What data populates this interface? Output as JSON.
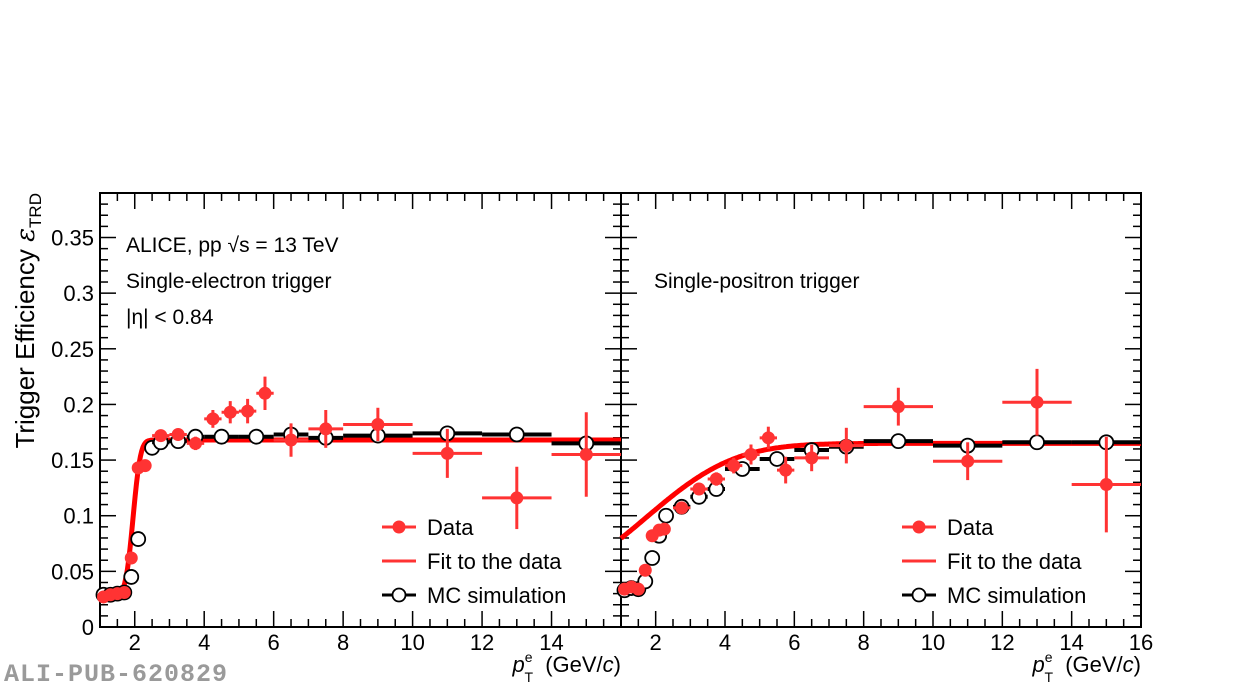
{
  "watermark": "ALI-PUB-620829",
  "chart_data": [
    {
      "type": "scatter",
      "panel": "left",
      "title": "",
      "annotations": [
        "ALICE, pp √s = 13 TeV",
        "Single-electron trigger",
        "|η| < 0.84"
      ],
      "xlabel": "p_T^e (GeV/c)",
      "ylabel": "Trigger Efficiency ε_TRD",
      "xlim": [
        1,
        16
      ],
      "ylim": [
        0,
        0.39
      ],
      "xticks": [
        2,
        4,
        6,
        8,
        10,
        12,
        14
      ],
      "yticks": [
        0,
        0.05,
        0.1,
        0.15,
        0.2,
        0.25,
        0.3,
        0.35
      ],
      "ytick_labels": [
        "0",
        "0.05",
        "0.1",
        "0.15",
        "0.2",
        "0.25",
        "0.3",
        "0.35"
      ],
      "grid": false,
      "legend": {
        "position": "bottom-right",
        "entries": [
          "Data",
          "Fit to the data",
          "MC simulation"
        ]
      },
      "series": [
        {
          "name": "Data",
          "color": "#ff3333",
          "points": [
            {
              "x": 1.1,
              "y": 0.027,
              "xerr": 0.1,
              "yerr": 0.003
            },
            {
              "x": 1.3,
              "y": 0.029,
              "xerr": 0.1,
              "yerr": 0.003
            },
            {
              "x": 1.5,
              "y": 0.03,
              "xerr": 0.1,
              "yerr": 0.003
            },
            {
              "x": 1.7,
              "y": 0.031,
              "xerr": 0.1,
              "yerr": 0.003
            },
            {
              "x": 1.9,
              "y": 0.062,
              "xerr": 0.1,
              "yerr": 0.004
            },
            {
              "x": 2.1,
              "y": 0.143,
              "xerr": 0.1,
              "yerr": 0.005
            },
            {
              "x": 2.3,
              "y": 0.145,
              "xerr": 0.1,
              "yerr": 0.005
            },
            {
              "x": 2.75,
              "y": 0.172,
              "xerr": 0.25,
              "yerr": 0.005
            },
            {
              "x": 3.25,
              "y": 0.173,
              "xerr": 0.25,
              "yerr": 0.005
            },
            {
              "x": 3.75,
              "y": 0.165,
              "xerr": 0.25,
              "yerr": 0.006
            },
            {
              "x": 4.25,
              "y": 0.187,
              "xerr": 0.25,
              "yerr": 0.008
            },
            {
              "x": 4.75,
              "y": 0.193,
              "xerr": 0.25,
              "yerr": 0.01
            },
            {
              "x": 5.25,
              "y": 0.194,
              "xerr": 0.25,
              "yerr": 0.011
            },
            {
              "x": 5.75,
              "y": 0.21,
              "xerr": 0.25,
              "yerr": 0.015
            },
            {
              "x": 6.5,
              "y": 0.168,
              "xerr": 0.5,
              "yerr": 0.015
            },
            {
              "x": 7.5,
              "y": 0.178,
              "xerr": 0.5,
              "yerr": 0.017
            },
            {
              "x": 9.0,
              "y": 0.182,
              "xerr": 1.0,
              "yerr": 0.015
            },
            {
              "x": 11.0,
              "y": 0.156,
              "xerr": 1.0,
              "yerr": 0.022
            },
            {
              "x": 13.0,
              "y": 0.116,
              "xerr": 1.0,
              "yerr": 0.028
            },
            {
              "x": 15.0,
              "y": 0.155,
              "xerr": 1.0,
              "yerr": 0.038
            }
          ]
        },
        {
          "name": "MC simulation",
          "color": "#000000",
          "points": [
            {
              "x": 1.1,
              "y": 0.029,
              "xerr": 0.1
            },
            {
              "x": 1.3,
              "y": 0.029,
              "xerr": 0.1
            },
            {
              "x": 1.5,
              "y": 0.03,
              "xerr": 0.1
            },
            {
              "x": 1.7,
              "y": 0.031,
              "xerr": 0.1
            },
            {
              "x": 1.9,
              "y": 0.045,
              "xerr": 0.1
            },
            {
              "x": 2.1,
              "y": 0.079,
              "xerr": 0.1
            },
            {
              "x": 2.5,
              "y": 0.161,
              "xerr": 0.1
            },
            {
              "x": 2.75,
              "y": 0.166,
              "xerr": 0.25
            },
            {
              "x": 3.25,
              "y": 0.167,
              "xerr": 0.25
            },
            {
              "x": 3.75,
              "y": 0.171,
              "xerr": 0.25
            },
            {
              "x": 4.5,
              "y": 0.171,
              "xerr": 0.5
            },
            {
              "x": 5.5,
              "y": 0.171,
              "xerr": 0.5
            },
            {
              "x": 6.5,
              "y": 0.173,
              "xerr": 0.5
            },
            {
              "x": 7.5,
              "y": 0.17,
              "xerr": 0.5
            },
            {
              "x": 9.0,
              "y": 0.172,
              "xerr": 1.0
            },
            {
              "x": 11.0,
              "y": 0.174,
              "xerr": 1.0
            },
            {
              "x": 13.0,
              "y": 0.173,
              "xerr": 1.0
            },
            {
              "x": 15.0,
              "y": 0.165,
              "xerr": 1.0
            }
          ]
        },
        {
          "name": "Fit to the data",
          "color": "#ff0000",
          "function": "erf",
          "plateau": 0.168,
          "baseline": 0.028,
          "midpoint": 1.95,
          "width": 0.17
        }
      ]
    },
    {
      "type": "scatter",
      "panel": "right",
      "title": "",
      "annotations": [
        "Single-positron trigger"
      ],
      "xlabel": "p_T^e (GeV/c)",
      "xlim": [
        1,
        16
      ],
      "ylim": [
        0,
        0.39
      ],
      "xticks": [
        2,
        4,
        6,
        8,
        10,
        12,
        14,
        16
      ],
      "grid": false,
      "legend": {
        "position": "bottom-right",
        "entries": [
          "Data",
          "Fit to the data",
          "MC simulation"
        ]
      },
      "series": [
        {
          "name": "Data",
          "color": "#ff3333",
          "points": [
            {
              "x": 1.1,
              "y": 0.034,
              "xerr": 0.1,
              "yerr": 0.003
            },
            {
              "x": 1.3,
              "y": 0.036,
              "xerr": 0.1,
              "yerr": 0.003
            },
            {
              "x": 1.5,
              "y": 0.034,
              "xerr": 0.1,
              "yerr": 0.003
            },
            {
              "x": 1.7,
              "y": 0.051,
              "xerr": 0.1,
              "yerr": 0.004
            },
            {
              "x": 1.9,
              "y": 0.082,
              "xerr": 0.1,
              "yerr": 0.005
            },
            {
              "x": 2.1,
              "y": 0.087,
              "xerr": 0.1,
              "yerr": 0.005
            },
            {
              "x": 2.25,
              "y": 0.088,
              "xerr": 0.1,
              "yerr": 0.005
            },
            {
              "x": 2.75,
              "y": 0.107,
              "xerr": 0.25,
              "yerr": 0.005
            },
            {
              "x": 3.25,
              "y": 0.124,
              "xerr": 0.25,
              "yerr": 0.005
            },
            {
              "x": 3.75,
              "y": 0.133,
              "xerr": 0.25,
              "yerr": 0.006
            },
            {
              "x": 4.25,
              "y": 0.145,
              "xerr": 0.25,
              "yerr": 0.007
            },
            {
              "x": 4.75,
              "y": 0.155,
              "xerr": 0.25,
              "yerr": 0.009
            },
            {
              "x": 5.25,
              "y": 0.17,
              "xerr": 0.25,
              "yerr": 0.01
            },
            {
              "x": 5.75,
              "y": 0.141,
              "xerr": 0.25,
              "yerr": 0.012
            },
            {
              "x": 6.5,
              "y": 0.152,
              "xerr": 0.5,
              "yerr": 0.012
            },
            {
              "x": 7.5,
              "y": 0.163,
              "xerr": 0.5,
              "yerr": 0.016
            },
            {
              "x": 9.0,
              "y": 0.198,
              "xerr": 1.0,
              "yerr": 0.017
            },
            {
              "x": 11.0,
              "y": 0.149,
              "xerr": 1.0,
              "yerr": 0.017
            },
            {
              "x": 13.0,
              "y": 0.202,
              "xerr": 1.0,
              "yerr": 0.03
            },
            {
              "x": 15.0,
              "y": 0.128,
              "xerr": 1.0,
              "yerr": 0.043
            }
          ]
        },
        {
          "name": "MC simulation",
          "color": "#000000",
          "points": [
            {
              "x": 1.1,
              "y": 0.033,
              "xerr": 0.1
            },
            {
              "x": 1.3,
              "y": 0.035,
              "xerr": 0.1
            },
            {
              "x": 1.5,
              "y": 0.034,
              "xerr": 0.1
            },
            {
              "x": 1.7,
              "y": 0.041,
              "xerr": 0.1
            },
            {
              "x": 1.9,
              "y": 0.062,
              "xerr": 0.1
            },
            {
              "x": 2.1,
              "y": 0.082,
              "xerr": 0.1
            },
            {
              "x": 2.3,
              "y": 0.1,
              "xerr": 0.1
            },
            {
              "x": 2.75,
              "y": 0.108,
              "xerr": 0.25
            },
            {
              "x": 3.25,
              "y": 0.117,
              "xerr": 0.25
            },
            {
              "x": 3.75,
              "y": 0.124,
              "xerr": 0.25
            },
            {
              "x": 4.5,
              "y": 0.142,
              "xerr": 0.5
            },
            {
              "x": 5.5,
              "y": 0.151,
              "xerr": 0.5
            },
            {
              "x": 6.5,
              "y": 0.159,
              "xerr": 0.5
            },
            {
              "x": 7.5,
              "y": 0.162,
              "xerr": 0.5
            },
            {
              "x": 9.0,
              "y": 0.167,
              "xerr": 1.0
            },
            {
              "x": 11.0,
              "y": 0.163,
              "xerr": 1.0
            },
            {
              "x": 13.0,
              "y": 0.166,
              "xerr": 1.0
            },
            {
              "x": 15.0,
              "y": 0.166,
              "xerr": 1.0
            }
          ]
        },
        {
          "name": "Fit to the data",
          "color": "#ff0000",
          "function": "erf",
          "plateau": 0.165,
          "baseline": 0.033,
          "midpoint": 1.75,
          "width": 2.0
        }
      ]
    }
  ]
}
